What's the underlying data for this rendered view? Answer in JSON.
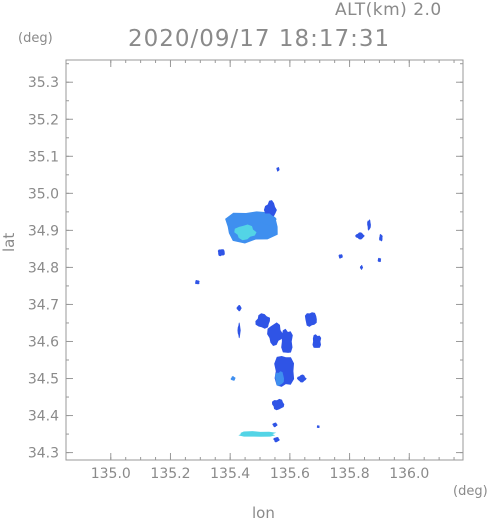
{
  "header": {
    "alt_label": "ALT(km) 2.0",
    "datetime": "2020/09/17 18:17:31"
  },
  "chart_data": {
    "type": "heatmap",
    "title": "2020/09/17 18:17:31",
    "xlabel": "lon",
    "ylabel": "lat",
    "x_unit": "(deg)",
    "y_unit": "(deg)",
    "xlim": [
      134.85,
      136.18
    ],
    "ylim": [
      34.28,
      35.36
    ],
    "x_ticks": [
      135.0,
      135.2,
      135.4,
      135.6,
      135.8,
      136.0
    ],
    "x_tick_labels": [
      "135.0",
      "135.2",
      "135.4",
      "135.6",
      "135.8",
      "136.0"
    ],
    "y_ticks": [
      34.3,
      34.4,
      34.5,
      34.6,
      34.7,
      34.8,
      34.9,
      35.0,
      35.1,
      35.2,
      35.3
    ],
    "y_tick_labels": [
      "34.3",
      "34.4",
      "34.5",
      "34.6",
      "34.7",
      "34.8",
      "34.9",
      "35.0",
      "35.1",
      "35.2",
      "35.3"
    ],
    "grid": false,
    "colors": {
      "weak": "#2f54e6",
      "moderate": "#3f8fef",
      "strong": "#53d4e6",
      "frame": "#999999"
    },
    "echoes": [
      {
        "lon": 135.47,
        "lat": 34.91,
        "rlon": 0.09,
        "rlat": 0.045,
        "level": "moderate"
      },
      {
        "lon": 135.45,
        "lat": 34.895,
        "rlon": 0.035,
        "rlat": 0.02,
        "level": "strong"
      },
      {
        "lon": 135.535,
        "lat": 34.955,
        "rlon": 0.02,
        "rlat": 0.025,
        "level": "weak"
      },
      {
        "lon": 135.525,
        "lat": 34.93,
        "rlon": 0.03,
        "rlat": 0.015,
        "level": "moderate"
      },
      {
        "lon": 135.37,
        "lat": 34.84,
        "rlon": 0.012,
        "rlat": 0.01,
        "level": "weak"
      },
      {
        "lon": 135.29,
        "lat": 34.76,
        "rlon": 0.008,
        "rlat": 0.006,
        "level": "weak"
      },
      {
        "lon": 135.56,
        "lat": 35.065,
        "rlon": 0.005,
        "rlat": 0.006,
        "level": "weak"
      },
      {
        "lon": 135.835,
        "lat": 34.885,
        "rlon": 0.015,
        "rlat": 0.009,
        "level": "weak"
      },
      {
        "lon": 135.865,
        "lat": 34.915,
        "rlon": 0.006,
        "rlat": 0.015,
        "level": "weak"
      },
      {
        "lon": 135.905,
        "lat": 34.88,
        "rlon": 0.006,
        "rlat": 0.01,
        "level": "weak"
      },
      {
        "lon": 135.9,
        "lat": 34.82,
        "rlon": 0.006,
        "rlat": 0.006,
        "level": "weak"
      },
      {
        "lon": 135.77,
        "lat": 34.83,
        "rlon": 0.007,
        "rlat": 0.006,
        "level": "weak"
      },
      {
        "lon": 135.84,
        "lat": 34.8,
        "rlon": 0.005,
        "rlat": 0.006,
        "level": "weak"
      },
      {
        "lon": 135.51,
        "lat": 34.655,
        "rlon": 0.025,
        "rlat": 0.02,
        "level": "weak"
      },
      {
        "lon": 135.55,
        "lat": 34.62,
        "rlon": 0.025,
        "rlat": 0.03,
        "level": "weak"
      },
      {
        "lon": 135.59,
        "lat": 34.6,
        "rlon": 0.02,
        "rlat": 0.035,
        "level": "weak"
      },
      {
        "lon": 135.67,
        "lat": 34.66,
        "rlon": 0.02,
        "rlat": 0.02,
        "level": "weak"
      },
      {
        "lon": 135.69,
        "lat": 34.6,
        "rlon": 0.015,
        "rlat": 0.02,
        "level": "weak"
      },
      {
        "lon": 135.58,
        "lat": 34.52,
        "rlon": 0.035,
        "rlat": 0.045,
        "level": "weak"
      },
      {
        "lon": 135.565,
        "lat": 34.5,
        "rlon": 0.015,
        "rlat": 0.02,
        "level": "moderate"
      },
      {
        "lon": 135.64,
        "lat": 34.5,
        "rlon": 0.015,
        "rlat": 0.01,
        "level": "weak"
      },
      {
        "lon": 135.56,
        "lat": 34.43,
        "rlon": 0.02,
        "rlat": 0.015,
        "level": "weak"
      },
      {
        "lon": 135.43,
        "lat": 34.63,
        "rlon": 0.005,
        "rlat": 0.02,
        "level": "weak"
      },
      {
        "lon": 135.43,
        "lat": 34.69,
        "rlon": 0.008,
        "rlat": 0.008,
        "level": "weak"
      },
      {
        "lon": 135.41,
        "lat": 34.5,
        "rlon": 0.008,
        "rlat": 0.006,
        "level": "moderate"
      },
      {
        "lon": 135.49,
        "lat": 34.35,
        "rlon": 0.065,
        "rlat": 0.008,
        "level": "strong"
      },
      {
        "lon": 135.555,
        "lat": 34.335,
        "rlon": 0.01,
        "rlat": 0.007,
        "level": "weak"
      },
      {
        "lon": 135.55,
        "lat": 34.375,
        "rlon": 0.008,
        "rlat": 0.006,
        "level": "weak"
      },
      {
        "lon": 135.695,
        "lat": 34.37,
        "rlon": 0.004,
        "rlat": 0.004,
        "level": "weak"
      }
    ]
  }
}
